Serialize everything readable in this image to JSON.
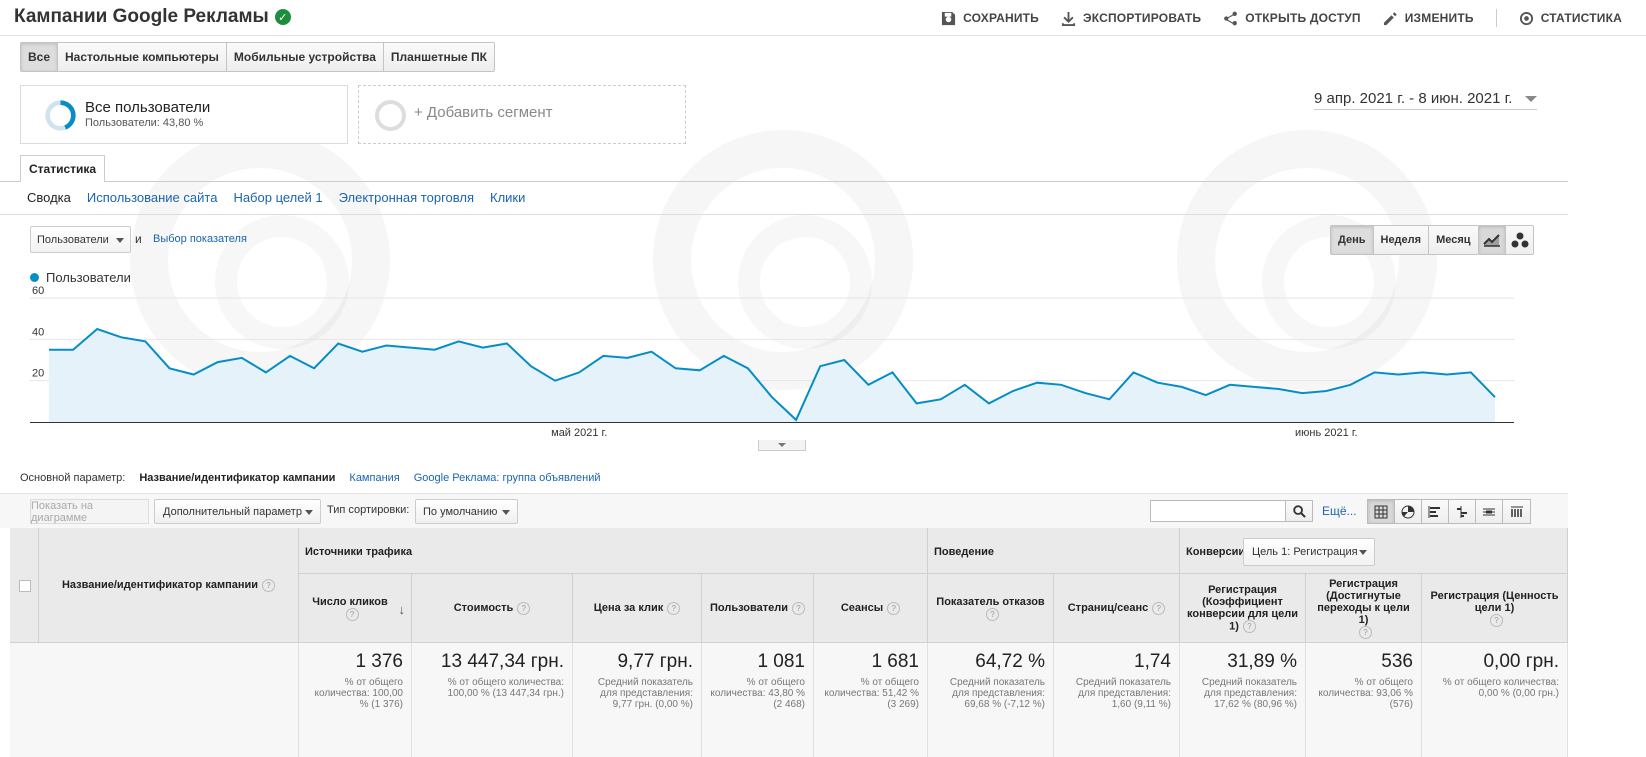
{
  "header": {
    "title": "Кампании Google Рекламы",
    "actions": {
      "save": "СОХРАНИТЬ",
      "export": "ЭКСПОРТИРОВАТЬ",
      "share": "ОТКРЫТЬ ДОСТУП",
      "edit": "ИЗМЕНИТЬ",
      "insights": "СТАТИСТИКА"
    }
  },
  "device_tabs": [
    "Все",
    "Настольные компьютеры",
    "Мобильные устройства",
    "Планшетные ПК"
  ],
  "segments": {
    "active_name": "Все пользователи",
    "active_sub": "Пользователи: 43,80 %",
    "add_label": "+ Добавить сегмент"
  },
  "date_range": "9 апр. 2021 г. - 8 июн. 2021 г.",
  "explorer": {
    "tab": "Статистика",
    "subtabs": [
      "Сводка",
      "Использование сайта",
      "Набор целей 1",
      "Электронная торговля",
      "Клики"
    ]
  },
  "chart_controls": {
    "metric": "Пользователи",
    "and": "и",
    "pick_metric": "Выбор показателя",
    "granularity": [
      "День",
      "Неделя",
      "Месяц"
    ]
  },
  "chart_data": {
    "type": "area",
    "series": [
      {
        "name": "Пользователи",
        "color": "#058dc7",
        "values": [
          35,
          35,
          45,
          41,
          39,
          26,
          23,
          29,
          31,
          24,
          32,
          26,
          38,
          34,
          37,
          36,
          35,
          39,
          36,
          38,
          27,
          20,
          24,
          32,
          31,
          34,
          26,
          25,
          32,
          26,
          12,
          1,
          27,
          30,
          18,
          24,
          9,
          11,
          18,
          9,
          15,
          19,
          18,
          14,
          11,
          24,
          19,
          17,
          13,
          18,
          17,
          16,
          14,
          15,
          18,
          24,
          23,
          24,
          23,
          24,
          12
        ]
      }
    ],
    "yticks": [
      20,
      40,
      60
    ],
    "ylim": [
      0,
      60
    ],
    "xlabels": [
      {
        "label": "май 2021 г.",
        "index": 22
      },
      {
        "label": "июнь 2021 г.",
        "index": 53
      }
    ]
  },
  "dimensions": {
    "label": "Основной параметр:",
    "current": "Название/идентификатор кампании",
    "options": [
      "Кампания",
      "Google Реклама: группа объявлений"
    ]
  },
  "toolbar": {
    "plot_rows": "Показать на диаграмме",
    "secondary_dim": "Дополнительный параметр",
    "sort_label": "Тип сортировки:",
    "sort_value": "По умолчанию",
    "more": "Ещё..."
  },
  "table": {
    "dim_header": "Название/идентификатор кампании",
    "groups": {
      "acquisition": "Источники трафика",
      "behavior": "Поведение",
      "conversions": "Конверсии",
      "goal_select": "Цель 1: Регистрация"
    },
    "columns": [
      {
        "label": "Число кликов",
        "value": "1 376",
        "sub": "% от общего количества: 100,00 % (1 376)"
      },
      {
        "label": "Стоимость",
        "value": "13 447,34 грн.",
        "sub": "% от общего количества: 100,00 % (13 447,34 грн.)"
      },
      {
        "label": "Цена за клик",
        "value": "9,77 грн.",
        "sub": "Средний показатель для представления: 9,77 грн. (0,00 %)"
      },
      {
        "label": "Пользователи",
        "value": "1 081",
        "sub": "% от общего количества: 43,80 % (2 468)"
      },
      {
        "label": "Сеансы",
        "value": "1 681",
        "sub": "% от общего количества: 51,42 % (3 269)"
      },
      {
        "label": "Показатель отказов",
        "value": "64,72 %",
        "sub": "Средний показатель для представления: 69,68 % (-7,12 %)"
      },
      {
        "label": "Страниц/сеанс",
        "value": "1,74",
        "sub": "Средний показатель для представления: 1,60 (9,11 %)"
      },
      {
        "label": "Регистрация (Коэффициент конверсии для цели 1)",
        "value": "31,89 %",
        "sub": "Средний показатель для представления: 17,62 % (80,96 %)"
      },
      {
        "label": "Регистрация (Достигнутые переходы к цели 1)",
        "value": "536",
        "sub": "% от общего количества: 93,06 % (576)"
      },
      {
        "label": "Регистрация (Ценность цели 1)",
        "value": "0,00 грн.",
        "sub": "% от общего количества: 0,00 % (0,00 грн.)"
      }
    ]
  }
}
